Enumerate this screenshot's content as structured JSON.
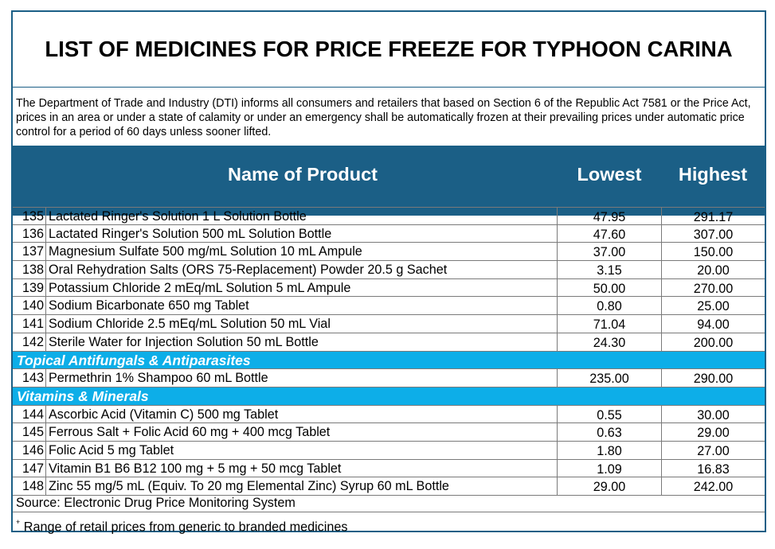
{
  "title": "LIST OF MEDICINES FOR PRICE FREEZE FOR TYPHOON CARINA",
  "intro": "The Department of Trade and Industry (DTI) informs all consumers and retailers that based on Section 6 of the Republic Act 7581 or the Price Act, prices in an area or under a state of calamity or under an emergency shall be automatically frozen at their prevailing prices under automatic price control for a period of 60 days unless sooner lifted.",
  "columns": {
    "name": "Name of Product",
    "lowest": "Lowest",
    "highest": "Highest"
  },
  "rows": [
    {
      "no": "135",
      "name": "Lactated Ringer's Solution 1 L Solution Bottle",
      "lowest": "47.95",
      "highest": "291.17"
    },
    {
      "no": "136",
      "name": "Lactated Ringer's Solution 500 mL Solution Bottle",
      "lowest": "47.60",
      "highest": "307.00"
    },
    {
      "no": "137",
      "name": "Magnesium Sulfate 500 mg/mL Solution 10 mL Ampule",
      "lowest": "37.00",
      "highest": "150.00"
    },
    {
      "no": "138",
      "name": "Oral Rehydration Salts (ORS 75-Replacement) Powder 20.5 g Sachet",
      "lowest": "3.15",
      "highest": "20.00"
    },
    {
      "no": "139",
      "name": "Potassium Chloride 2 mEq/mL Solution 5 mL Ampule",
      "lowest": "50.00",
      "highest": "270.00"
    },
    {
      "no": "140",
      "name": "Sodium Bicarbonate 650 mg Tablet",
      "lowest": "0.80",
      "highest": "25.00"
    },
    {
      "no": "141",
      "name": "Sodium Chloride 2.5 mEq/mL Solution 50 mL Vial",
      "lowest": "71.04",
      "highest": "94.00"
    },
    {
      "no": "142",
      "name": "Sterile Water for Injection Solution 50 mL Bottle",
      "lowest": "24.30",
      "highest": "200.00"
    }
  ],
  "category_1": "Topical Antifungals & Antiparasites",
  "rows_1": [
    {
      "no": "143",
      "name": "Permethrin 1% Shampoo 60 mL Bottle",
      "lowest": "235.00",
      "highest": "290.00"
    }
  ],
  "category_2": "Vitamins & Minerals",
  "rows_2": [
    {
      "no": "144",
      "name": "Ascorbic Acid (Vitamin C) 500 mg Tablet",
      "lowest": "0.55",
      "highest": "30.00"
    },
    {
      "no": "145",
      "name": "Ferrous Salt + Folic Acid 60 mg + 400 mcg Tablet",
      "lowest": "0.63",
      "highest": "29.00"
    },
    {
      "no": "146",
      "name": "Folic Acid 5 mg Tablet",
      "lowest": "1.80",
      "highest": "27.00"
    },
    {
      "no": "147",
      "name": "Vitamin B1 B6 B12 100 mg + 5 mg + 50 mcg Tablet",
      "lowest": "1.09",
      "highest": "16.83"
    },
    {
      "no": "148",
      "name": "Zinc 55 mg/5 mL (Equiv. To 20 mg Elemental Zinc) Syrup 60 mL Bottle",
      "lowest": "29.00",
      "highest": "242.00"
    }
  ],
  "source": "Source: Electronic Drug Price Monitoring System",
  "footnote_mark": "+",
  "footnote": "Range of retail prices from generic to branded medicines",
  "colors": {
    "header_bg": "#1b5f86",
    "category_bg": "#0daee8",
    "border": "#1b5f86"
  }
}
